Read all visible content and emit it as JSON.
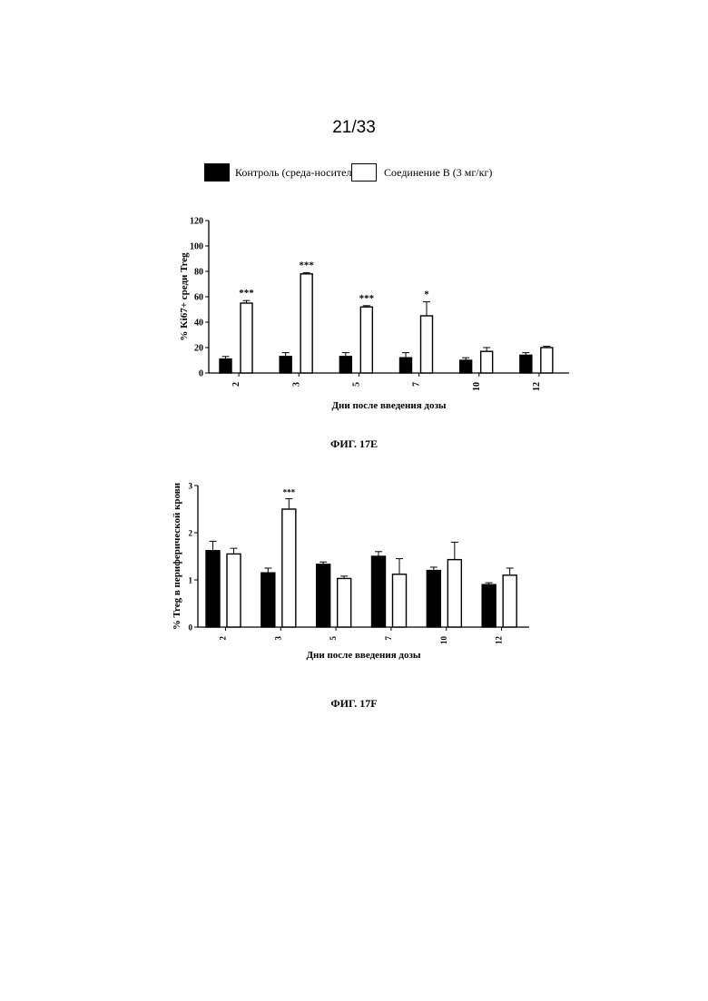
{
  "page_number": "21/33",
  "legend": [
    {
      "label": "Контроль (среда-носитель)",
      "fill": "#000000"
    },
    {
      "label": "Соединение B (3 мг/кг)",
      "fill": "#ffffff"
    }
  ],
  "figures": [
    {
      "caption": "ФИГ. 17E"
    },
    {
      "caption": "ФИГ. 17F"
    }
  ],
  "chart_data": [
    {
      "type": "bar",
      "xlabel": "Дни после введения дозы",
      "ylabel": "% Ki67+ среди Treg",
      "ylim": [
        0,
        120
      ],
      "yticks": [
        0,
        20,
        40,
        60,
        80,
        100,
        120
      ],
      "categories": [
        "2",
        "3",
        "5",
        "7",
        "10",
        "12"
      ],
      "grid": false,
      "series": [
        {
          "name": "Контроль (среда-носитель)",
          "values": [
            11,
            13,
            13,
            12,
            10,
            14
          ],
          "errors": [
            2,
            3,
            3,
            4,
            2,
            2
          ]
        },
        {
          "name": "Соединение B (3 мг/кг)",
          "values": [
            55,
            78,
            52,
            45,
            17,
            20
          ],
          "errors": [
            2,
            1,
            1,
            11,
            3,
            1
          ]
        }
      ],
      "annotations": [
        "***",
        "***",
        "***",
        "*",
        "",
        ""
      ]
    },
    {
      "type": "bar",
      "xlabel": "Дни после введения дозы",
      "ylabel": "% Treg в периферической крови",
      "ylim": [
        0,
        3
      ],
      "yticks": [
        0,
        1,
        2,
        3
      ],
      "categories": [
        "2",
        "3",
        "5",
        "7",
        "10",
        "12"
      ],
      "grid": false,
      "series": [
        {
          "name": "Контроль (среда-носитель)",
          "values": [
            1.62,
            1.15,
            1.33,
            1.5,
            1.2,
            0.9
          ],
          "errors": [
            0.2,
            0.1,
            0.05,
            0.1,
            0.07,
            0.04
          ]
        },
        {
          "name": "Соединение B (3 мг/кг)",
          "values": [
            1.55,
            2.5,
            1.03,
            1.12,
            1.43,
            1.1
          ],
          "errors": [
            0.12,
            0.22,
            0.05,
            0.33,
            0.37,
            0.15
          ]
        }
      ],
      "annotations": [
        "",
        "***",
        "",
        "",
        "",
        ""
      ]
    }
  ]
}
